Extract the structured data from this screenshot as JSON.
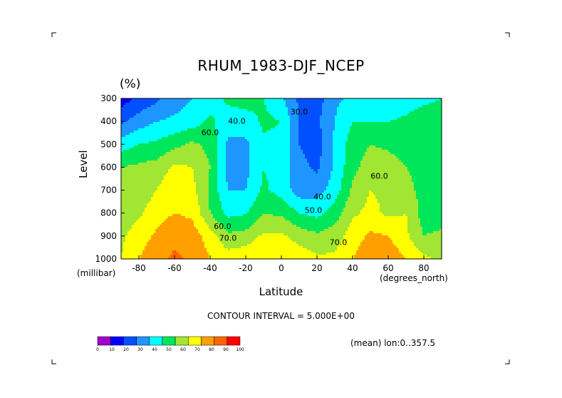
{
  "chart_data": {
    "type": "heatmap",
    "subtype": "filled-contour",
    "title": "RHUM_1983-DJF_NCEP",
    "unit_label": "(%)",
    "xlabel": "Latitude",
    "ylabel": "Level",
    "x_units": "(degrees_north)",
    "y_units": "(millibar)",
    "xlim": [
      -90,
      90
    ],
    "ylim": [
      1000,
      300
    ],
    "x_ticks": [
      -80,
      -60,
      -40,
      -20,
      0,
      20,
      40,
      60,
      80
    ],
    "y_ticks": [
      300,
      400,
      500,
      600,
      700,
      800,
      900,
      1000
    ],
    "contour_interval_text": "CONTOUR INTERVAL = 5.000E+00",
    "mean_text": "(mean) lon:0..357.5",
    "contour_labels": [
      {
        "text": "40.0",
        "lat": -25,
        "level": 410
      },
      {
        "text": "60.0",
        "lat": -40,
        "level": 460
      },
      {
        "text": "30.0",
        "lat": 10,
        "level": 370
      },
      {
        "text": "40.0",
        "lat": 23,
        "level": 740
      },
      {
        "text": "50.0",
        "lat": 18,
        "level": 800
      },
      {
        "text": "60.0",
        "lat": -33,
        "level": 870
      },
      {
        "text": "70.0",
        "lat": -30,
        "level": 920
      },
      {
        "text": "70.0",
        "lat": 32,
        "level": 940
      },
      {
        "text": "60.0",
        "lat": 55,
        "level": 650
      }
    ],
    "legend": {
      "levels": [
        0,
        10,
        20,
        30,
        40,
        50,
        60,
        70,
        80,
        90,
        100
      ],
      "tick_labels": [
        "0",
        "10",
        "20",
        "30",
        "40",
        "50",
        "60",
        "70",
        "80",
        "90",
        "100"
      ],
      "colors": [
        "#a000c8",
        "#0000ff",
        "#0050ff",
        "#1e96ff",
        "#00ffff",
        "#00e65a",
        "#a0e632",
        "#ffff00",
        "#ffa000",
        "#ff6400",
        "#ff0000"
      ]
    },
    "sample_points": {
      "lats": [
        -90,
        -80,
        -70,
        -60,
        -50,
        -40,
        -30,
        -20,
        -10,
        0,
        10,
        20,
        30,
        40,
        50,
        60,
        70,
        80,
        90
      ],
      "levels": [
        300,
        400,
        500,
        600,
        700,
        800,
        900,
        1000
      ],
      "values": [
        [
          15,
          22,
          28,
          35,
          40,
          45,
          52,
          55,
          50,
          42,
          28,
          25,
          38,
          42,
          40,
          42,
          45,
          48,
          50
        ],
        [
          28,
          35,
          40,
          42,
          45,
          52,
          45,
          45,
          52,
          50,
          30,
          28,
          40,
          50,
          50,
          50,
          52,
          55,
          55
        ],
        [
          45,
          50,
          52,
          57,
          62,
          57,
          38,
          38,
          48,
          48,
          30,
          25,
          42,
          55,
          60,
          58,
          55,
          55,
          55
        ],
        [
          60,
          62,
          64,
          72,
          70,
          60,
          37,
          37,
          50,
          46,
          33,
          28,
          42,
          57,
          65,
          65,
          60,
          58,
          57
        ],
        [
          65,
          64,
          70,
          78,
          73,
          58,
          40,
          40,
          52,
          46,
          35,
          35,
          45,
          62,
          70,
          68,
          62,
          58,
          55
        ],
        [
          65,
          68,
          76,
          80,
          78,
          60,
          47,
          49,
          60,
          58,
          50,
          47,
          55,
          68,
          73,
          68,
          70,
          55,
          55
        ],
        [
          68,
          75,
          82,
          87,
          85,
          75,
          62,
          64,
          72,
          72,
          66,
          62,
          65,
          75,
          82,
          80,
          72,
          60,
          62
        ],
        [
          70,
          80,
          87,
          92,
          88,
          80,
          75,
          78,
          80,
          78,
          76,
          72,
          72,
          80,
          88,
          87,
          80,
          72,
          68
        ]
      ]
    }
  }
}
